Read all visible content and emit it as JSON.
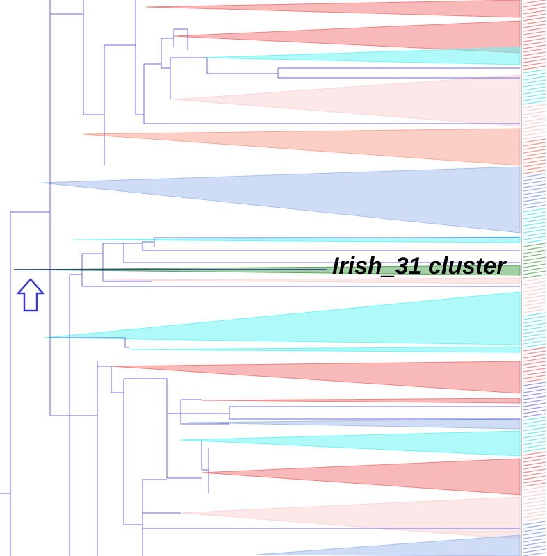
{
  "annotation": {
    "label": "Irish_31 cluster",
    "arrow_icon": "up-arrow-outline",
    "arrow_color": "#3a3ad0"
  },
  "colors": {
    "branch": "#5050e8",
    "red": "#f08080",
    "salmon": "#f7a898",
    "pink": "#f9d6d6",
    "cyan": "#70f4f4",
    "blue": "#a8c0ec",
    "green": "#5aa85a"
  }
}
